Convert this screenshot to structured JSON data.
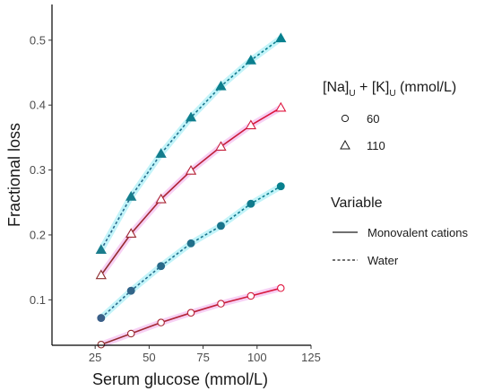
{
  "chart_data": {
    "type": "line",
    "xlabel": "Serum glucose (mmol/L)",
    "ylabel": "Fractional loss",
    "xlim": [
      5,
      125
    ],
    "ylim": [
      0.03,
      0.555
    ],
    "x_ticks": [
      25,
      50,
      75,
      100,
      125
    ],
    "y_ticks": [
      0.1,
      0.2,
      0.3,
      0.4,
      0.5
    ],
    "grid": false,
    "legend_position": "right",
    "x": [
      27.75,
      41.625,
      55.5,
      69.375,
      83.25,
      97.125,
      111
    ],
    "series": [
      {
        "shape_key": "60",
        "variable_key": "Monovalent cations",
        "values": [
          0.031,
          0.048,
          0.065,
          0.08,
          0.094,
          0.106,
          0.118
        ]
      },
      {
        "shape_key": "60",
        "variable_key": "Water",
        "values": [
          0.072,
          0.114,
          0.152,
          0.187,
          0.214,
          0.248,
          0.275
        ]
      },
      {
        "shape_key": "110",
        "variable_key": "Monovalent cations",
        "values": [
          0.138,
          0.202,
          0.255,
          0.299,
          0.336,
          0.369,
          0.396
        ]
      },
      {
        "shape_key": "110",
        "variable_key": "Water",
        "values": [
          0.177,
          0.259,
          0.325,
          0.381,
          0.429,
          0.469,
          0.503
        ]
      }
    ],
    "legend_shape": {
      "title_main": "[Na]",
      "title_sub1": "U",
      "title_plus": " + [K]",
      "title_sub2": "U",
      "title_unit": " (mmol/L)",
      "items": [
        "60",
        "110"
      ]
    },
    "legend_linetype": {
      "title": "Variable",
      "items": [
        "Monovalent cations",
        "Water"
      ]
    },
    "colors": {
      "solid_low": "#8c2d2d",
      "solid_high": "#e0163f",
      "dashed_low": "#2e6a8e",
      "dashed_high": "#08808e",
      "glow_solid": "#f6c8f2",
      "glow_dashed": "#b8f2f8",
      "open_fill_60": "#ffffff",
      "open_stroke_60": "#8c2d2d",
      "open_stroke_110": "#e0163f",
      "filled_60": "#3a5f88",
      "filled_110": "#1a7c8c",
      "axis": "#000000"
    }
  }
}
